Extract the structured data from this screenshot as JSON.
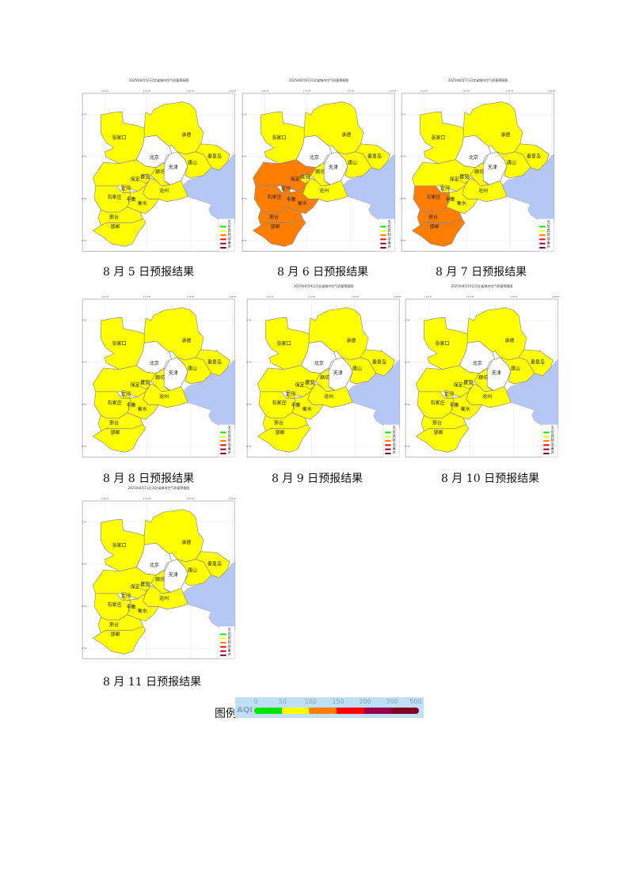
{
  "colors": {
    "none": "#ffffff",
    "good": "#00e400",
    "moderate": "#ffff00",
    "light": "#ff7e00",
    "medium": "#ff0000",
    "heavy": "#99004c",
    "severe": "#7e0023",
    "sea": "#b5c8f5",
    "border": "#888888"
  },
  "region_labels": {
    "zhangjiakou": "张家口",
    "chengde": "承德",
    "beijing": "北京",
    "tianjin": "天津",
    "qinhuangdao": "秦皇岛",
    "tangshan": "唐山",
    "langfang": "廊坊",
    "baoding": "保定",
    "xiongan": "雄安",
    "dingzhou": "定州",
    "shijiazhuang": "石家庄",
    "xinji": "辛集",
    "hengshui": "衡水",
    "cangzhou": "沧州",
    "xingtai": "邢台",
    "handan": "邯郸"
  },
  "lon_ticks": [
    "114°E",
    "116°E",
    "118°E",
    "120°E"
  ],
  "lat_ticks": [
    "42°N",
    "40°N",
    "38°N",
    "36°N"
  ],
  "map_legend": [
    "无",
    "优",
    "良",
    "轻",
    "中",
    "重",
    "严"
  ],
  "maps": [
    {
      "title": "2025年8月5日河北省城市空气质量预报图",
      "caption": "8 月 5 日预报结果",
      "light": []
    },
    {
      "title": "2025年8月6日河北省城市空气质量预报图",
      "caption": "8 月 6 日预报结果",
      "light": [
        "baoding",
        "dingzhou",
        "shijiazhuang",
        "xinji",
        "hengshui",
        "xingtai",
        "handan"
      ]
    },
    {
      "title": "2025年8月7日河北省城市空气质量预报图",
      "caption": "8 月 7 日预报结果",
      "light": [
        "shijiazhuang",
        "xinji",
        "xingtai",
        "handan"
      ]
    },
    {
      "title": "",
      "caption": "8 月 8 日预报结果",
      "light": []
    },
    {
      "title": "2025年8月9日河北省城市空气质量预报图",
      "caption": "8 月 9 日预报结果",
      "light": []
    },
    {
      "title": "2025年8月10日河北省城市空气质量预报图",
      "caption": "8 月 10 日预报结果",
      "light": []
    },
    {
      "title": "2025年8月11日河北省城市空气质量预报图",
      "caption": "8 月 11 日预报结果",
      "light": []
    }
  ],
  "legend": {
    "label": "图例",
    "aqi_title": "AQI",
    "ticks": [
      "0",
      "50",
      "100",
      "150",
      "200",
      "300",
      "500"
    ],
    "segments": [
      "#00e400",
      "#ffff00",
      "#ff7e00",
      "#ff0000",
      "#99004c",
      "#7e0023"
    ]
  }
}
